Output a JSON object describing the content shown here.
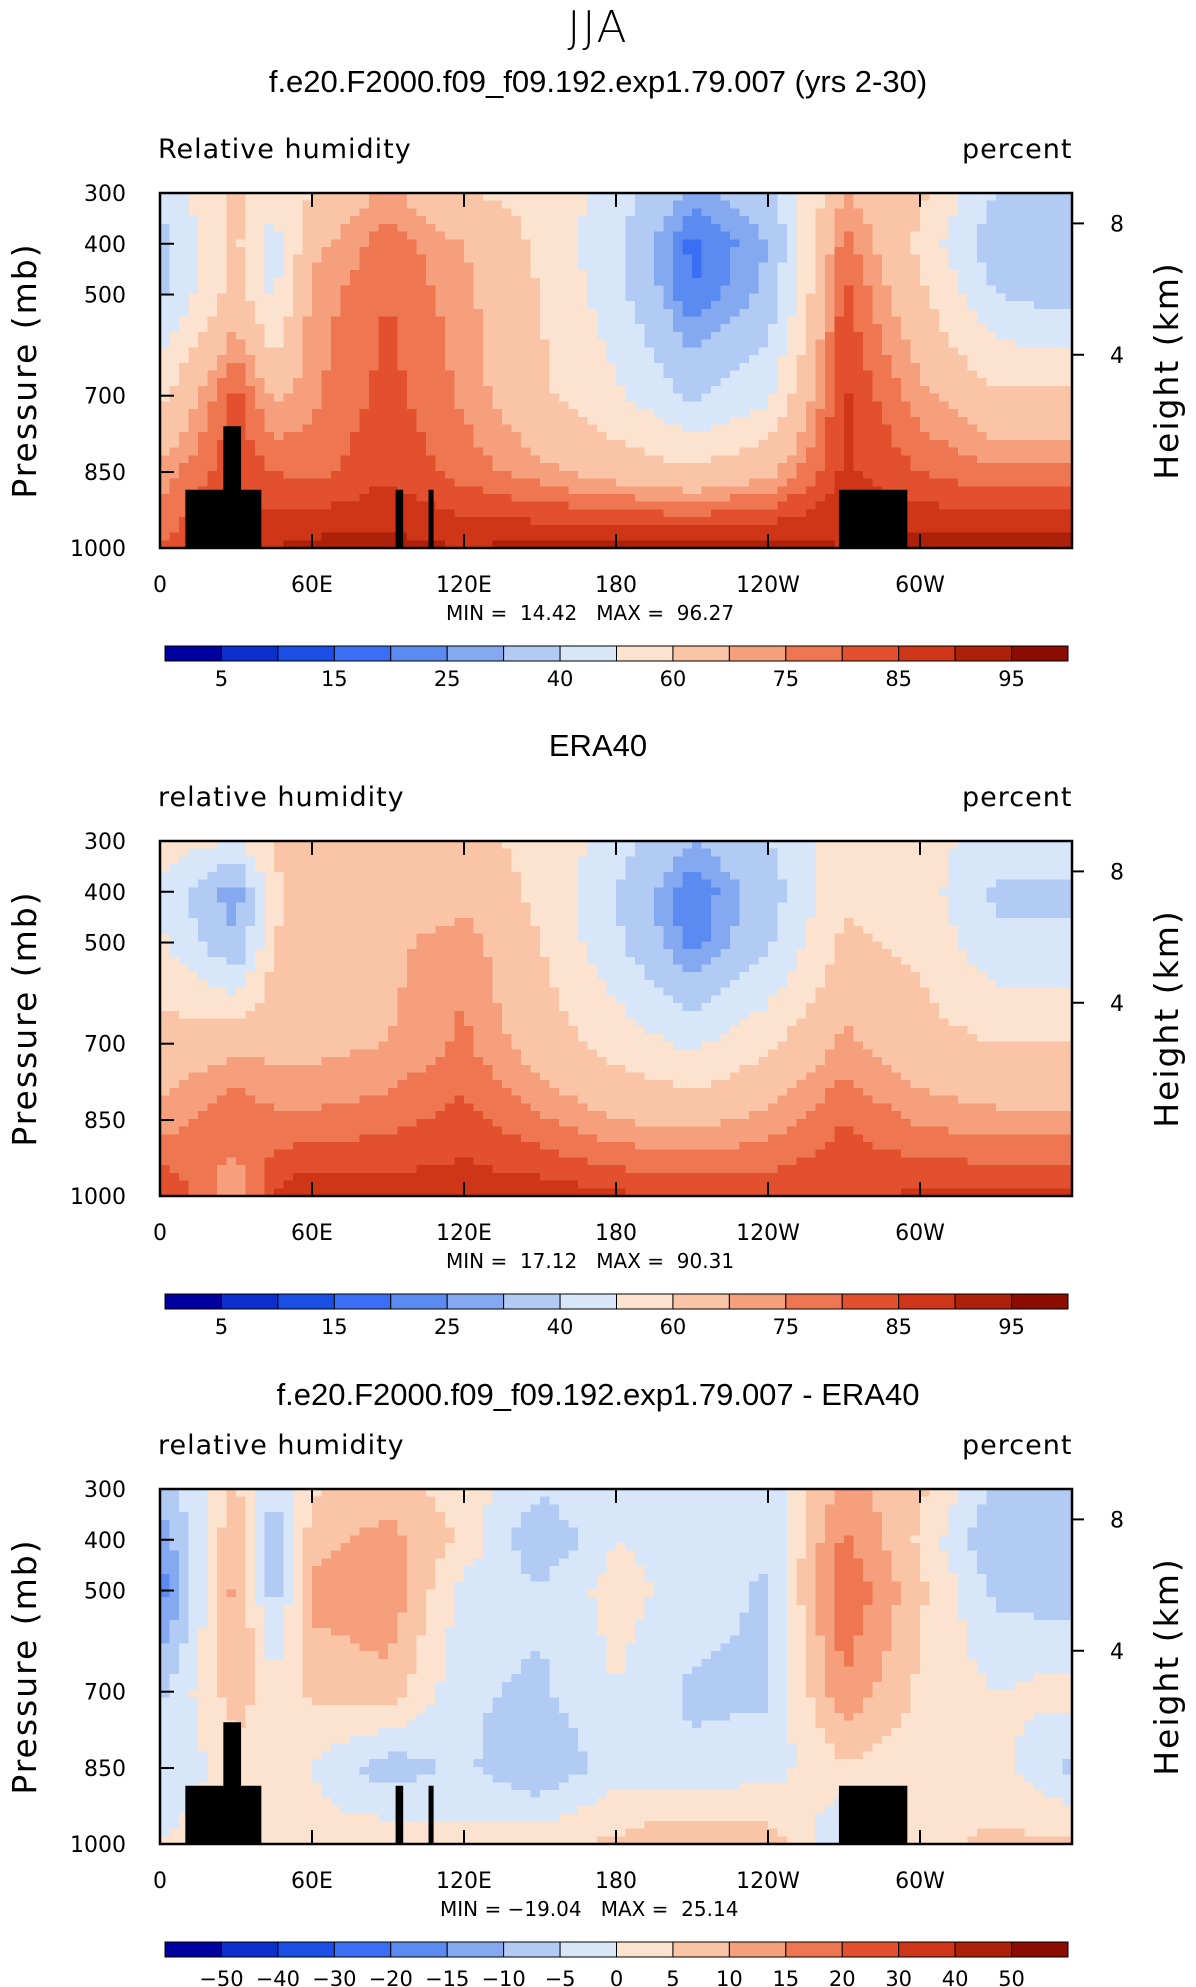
{
  "figure": {
    "season_title": "JJA",
    "panel_titles": [
      "f.e20.F2000.f09_f09.192.exp1.79.007 (yrs 2-30)",
      "ERA40",
      "f.e20.F2000.f09_f09.192.exp1.79.007 - ERA40"
    ],
    "left_labels": [
      "Relative humidity",
      "relative humidity",
      "relative humidity"
    ],
    "right_label": "percent",
    "y_label": "Pressure (mb)",
    "y2_label": "Height (km)",
    "pressure_ticks": [
      "300",
      "400",
      "500",
      "700",
      "850",
      "1000"
    ],
    "height_ticks": [
      "8",
      "4"
    ],
    "lon_ticks": [
      "0",
      "60E",
      "120E",
      "180",
      "120W",
      "60W"
    ],
    "minmax": [
      {
        "min_label": "MIN =",
        "min": "14.42",
        "max_label": "MAX =",
        "max": "96.27"
      },
      {
        "min_label": "MIN =",
        "min": "17.12",
        "max_label": "MAX =",
        "max": "90.31"
      },
      {
        "min_label": "MIN =",
        "min": "−19.04",
        "max_label": "MAX =",
        "max": "25.14"
      }
    ],
    "colorbar_labels_abs": [
      "5",
      "15",
      "25",
      "40",
      "60",
      "75",
      "85",
      "95"
    ],
    "colorbar_labels_diff": [
      "−50",
      "−40",
      "−30",
      "−20",
      "−15",
      "−10",
      "−5",
      "0",
      "5",
      "10",
      "15",
      "20",
      "30",
      "40",
      "50"
    ],
    "colors": [
      "#00009e",
      "#0a2fcc",
      "#1a4fe6",
      "#3a6ef5",
      "#5b8bf0",
      "#84a9f1",
      "#b2cbf4",
      "#d7e6f8",
      "#fbe3d0",
      "#fac4a6",
      "#f59f7c",
      "#ee7651",
      "#e2502d",
      "#cf3517",
      "#ad2009",
      "#8b0d02"
    ]
  },
  "chart_data": [
    {
      "type": "heatmap",
      "title": "f.e20.F2000.f09_f09.192.exp1.79.007 (yrs 2-30)",
      "field": "Relative humidity",
      "units": "percent",
      "xlabel": "",
      "ylabel": "Pressure (mb)",
      "y2label": "Height (km)",
      "x": [
        0,
        30,
        45,
        60,
        90,
        120,
        150,
        180,
        210,
        240,
        270,
        300,
        330,
        360
      ],
      "y": [
        300,
        400,
        500,
        700,
        850,
        1000
      ],
      "z": [
        [
          45,
          62,
          55,
          60,
          72,
          60,
          58,
          45,
          28,
          35,
          70,
          62,
          40,
          40
        ],
        [
          35,
          62,
          45,
          68,
          78,
          70,
          58,
          42,
          18,
          30,
          78,
          58,
          32,
          30
        ],
        [
          38,
          65,
          48,
          72,
          80,
          72,
          60,
          44,
          20,
          32,
          82,
          62,
          40,
          35
        ],
        [
          58,
          82,
          68,
          74,
          82,
          74,
          62,
          52,
          38,
          48,
          86,
          72,
          62,
          62
        ],
        [
          72,
          84,
          80,
          78,
          84,
          78,
          72,
          66,
          62,
          68,
          86,
          80,
          76,
          76
        ],
        [
          80,
          88,
          90,
          92,
          92,
          90,
          92,
          94,
          94,
          94,
          90,
          92,
          94,
          94
        ]
      ],
      "levels": [
        5,
        10,
        15,
        20,
        25,
        30,
        40,
        50,
        60,
        70,
        75,
        80,
        85,
        90,
        95
      ],
      "min": 14.42,
      "max": 96.27
    },
    {
      "type": "heatmap",
      "title": "ERA40",
      "field": "relative humidity",
      "units": "percent",
      "xlabel": "",
      "ylabel": "Pressure (mb)",
      "y2label": "Height (km)",
      "x": [
        0,
        30,
        45,
        60,
        90,
        120,
        150,
        180,
        210,
        240,
        270,
        300,
        330,
        360
      ],
      "y": [
        300,
        400,
        500,
        700,
        850,
        1000
      ],
      "z": [
        [
          55,
          50,
          62,
          62,
          62,
          62,
          58,
          45,
          30,
          40,
          55,
          55,
          45,
          45
        ],
        [
          48,
          25,
          58,
          64,
          64,
          66,
          58,
          40,
          20,
          35,
          58,
          55,
          38,
          38
        ],
        [
          52,
          30,
          60,
          66,
          68,
          74,
          60,
          42,
          22,
          38,
          62,
          58,
          42,
          42
        ],
        [
          65,
          68,
          68,
          68,
          70,
          76,
          66,
          56,
          48,
          58,
          72,
          64,
          60,
          60
        ],
        [
          72,
          80,
          76,
          76,
          78,
          82,
          76,
          70,
          68,
          72,
          80,
          74,
          72,
          72
        ],
        [
          86,
          70,
          86,
          90,
          88,
          88,
          88,
          86,
          84,
          84,
          84,
          86,
          86,
          86
        ]
      ],
      "levels": [
        5,
        10,
        15,
        20,
        25,
        30,
        40,
        50,
        60,
        70,
        75,
        80,
        85,
        90,
        95
      ],
      "min": 17.12,
      "max": 90.31
    },
    {
      "type": "heatmap",
      "title": "f.e20.F2000.f09_f09.192.exp1.79.007 - ERA40",
      "field": "relative humidity",
      "units": "percent",
      "xlabel": "",
      "ylabel": "Pressure (mb)",
      "y2label": "Height (km)",
      "x": [
        0,
        30,
        45,
        60,
        90,
        120,
        150,
        180,
        210,
        240,
        270,
        300,
        330,
        360
      ],
      "y": [
        300,
        400,
        500,
        700,
        850,
        1000
      ],
      "z": [
        [
          -8,
          6,
          -4,
          4,
          8,
          2,
          -4,
          0,
          -3,
          -3,
          12,
          6,
          -6,
          -6
        ],
        [
          -14,
          10,
          -10,
          8,
          12,
          4,
          -10,
          0,
          -2,
          -4,
          16,
          4,
          -10,
          -10
        ],
        [
          -18,
          12,
          -8,
          12,
          14,
          -2,
          -4,
          2,
          -2,
          -6,
          20,
          6,
          -6,
          -8
        ],
        [
          -6,
          8,
          2,
          6,
          8,
          -4,
          -6,
          0,
          -6,
          -6,
          14,
          4,
          0,
          2
        ],
        [
          -4,
          2,
          2,
          0,
          -8,
          -4,
          -10,
          -2,
          -4,
          -2,
          4,
          2,
          2,
          -6
        ],
        [
          0,
          4,
          2,
          2,
          4,
          2,
          4,
          6,
          10,
          8,
          -6,
          4,
          6,
          6
        ]
      ],
      "levels": [
        -50,
        -40,
        -30,
        -20,
        -15,
        -10,
        -5,
        0,
        5,
        10,
        15,
        20,
        30,
        40,
        50
      ],
      "min": -19.04,
      "max": 25.14
    }
  ]
}
